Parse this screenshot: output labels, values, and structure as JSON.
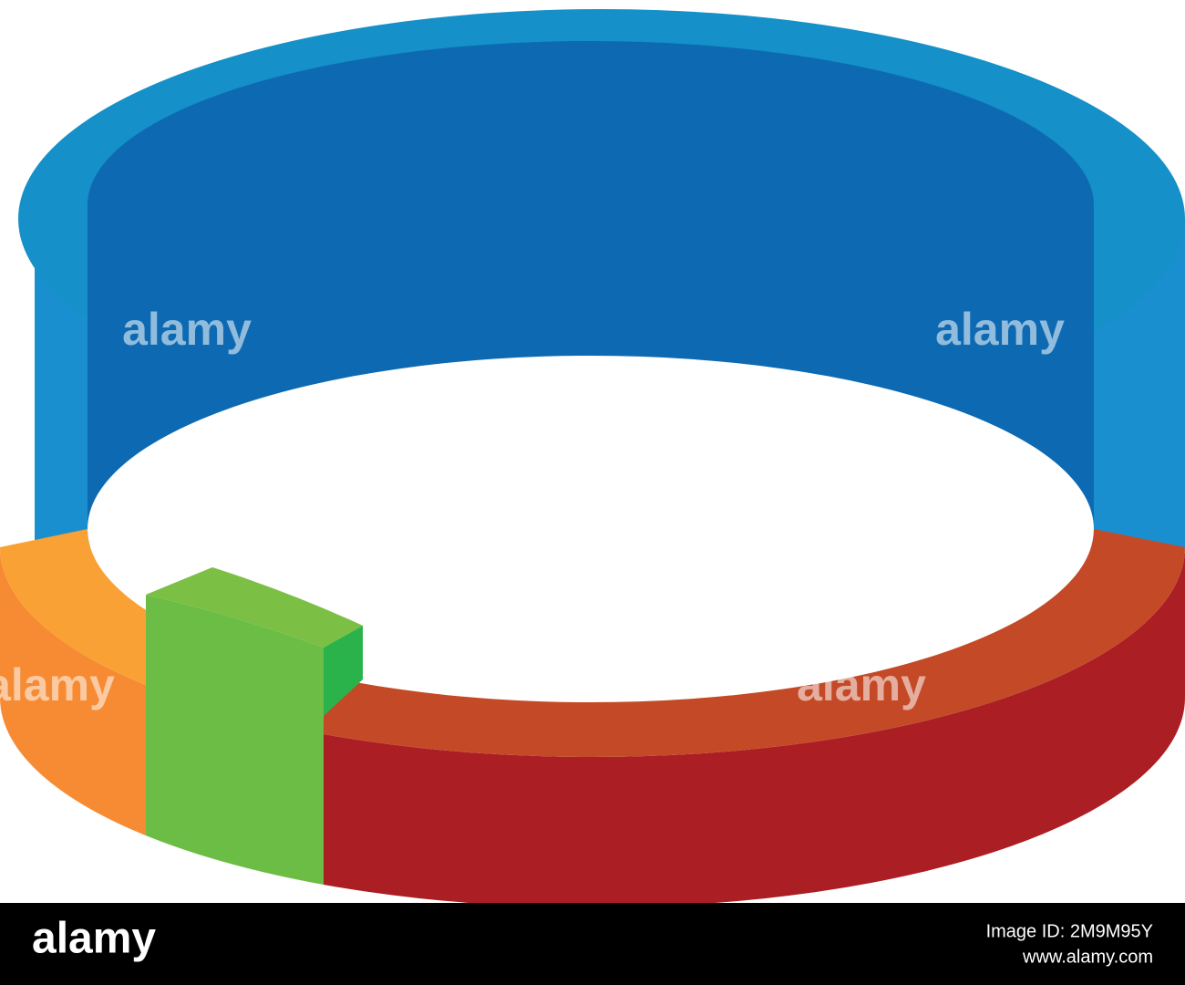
{
  "watermark": "alamy",
  "footer": {
    "logo": "alamy",
    "image_id": "Image ID: 2M9M95Y",
    "url": "www.alamy.com"
  }
}
